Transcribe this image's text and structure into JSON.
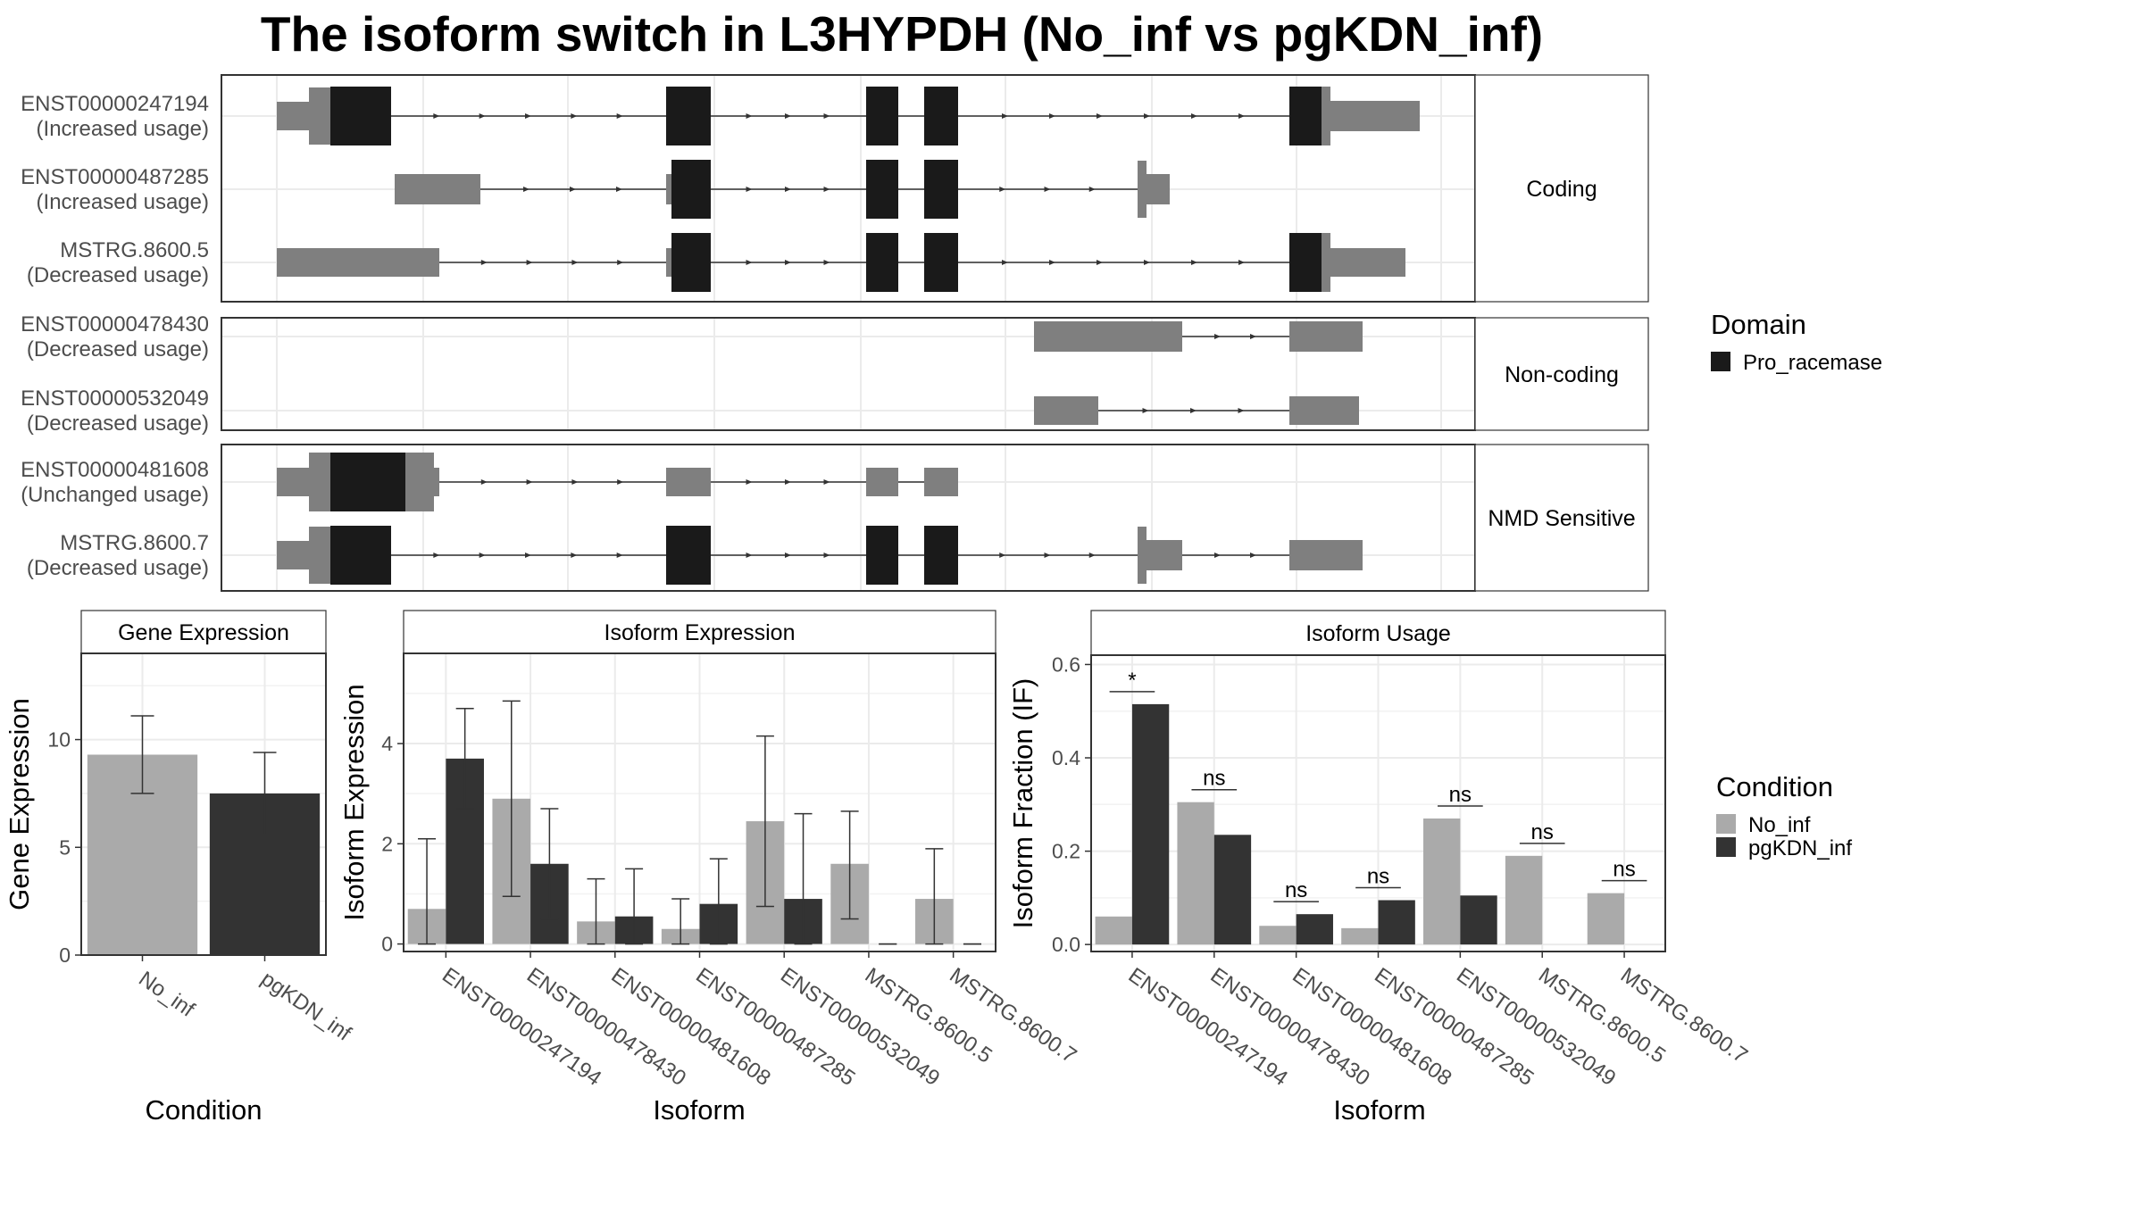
{
  "title": "The isoform switch in L3HYPDH (No_inf vs pgKDN_inf)",
  "transcripts": {
    "categories": [
      {
        "name": "Coding",
        "isoforms": [
          {
            "id": "ENST00000247194",
            "usage": "(Increased usage)"
          },
          {
            "id": "ENST00000487285",
            "usage": "(Increased usage)"
          },
          {
            "id": "MSTRG.8600.5",
            "usage": "(Decreased usage)"
          }
        ]
      },
      {
        "name": "Non-coding",
        "isoforms": [
          {
            "id": "ENST00000478430",
            "usage": "(Decreased usage)"
          },
          {
            "id": "ENST00000532049",
            "usage": "(Decreased usage)"
          }
        ]
      },
      {
        "name": "NMD Sensitive",
        "isoforms": [
          {
            "id": "ENST00000481608",
            "usage": "(Unchanged usage)"
          },
          {
            "id": "MSTRG.8600.7",
            "usage": "(Decreased usage)"
          }
        ]
      }
    ],
    "domain_legend": {
      "title": "Domain",
      "items": [
        "Pro_racemase"
      ]
    },
    "colors": {
      "domain": "#1a1a1a",
      "exon": "#7f7f7f"
    }
  },
  "chart_data": [
    {
      "type": "bar",
      "panel": "Gene Expression",
      "xlabel": "Condition",
      "ylabel": "Gene Expression",
      "categories": [
        "No_inf",
        "pgKDN_inf"
      ],
      "values": [
        9.3,
        7.5
      ],
      "error_low": [
        7.5,
        5.6
      ],
      "error_high": [
        11.1,
        9.4
      ],
      "ylim": [
        0,
        14
      ],
      "yticks": [
        0,
        5,
        10
      ],
      "colors": [
        "#aaaaaa",
        "#333333"
      ]
    },
    {
      "type": "bar",
      "panel": "Isoform Expression",
      "xlabel": "Isoform",
      "ylabel": "Isoform Expression",
      "categories": [
        "ENST00000247194",
        "ENST00000478430",
        "ENST00000481608",
        "ENST00000487285",
        "ENST00000532049",
        "MSTRG.8600.5",
        "MSTRG.8600.7"
      ],
      "series": [
        {
          "name": "No_inf",
          "values": [
            0.7,
            2.9,
            0.45,
            0.3,
            2.45,
            1.6,
            0.9
          ],
          "error_low": [
            0.0,
            0.95,
            0.0,
            0.0,
            0.75,
            0.5,
            0.0
          ],
          "error_high": [
            2.1,
            4.85,
            1.3,
            0.9,
            4.15,
            2.65,
            1.9
          ]
        },
        {
          "name": "pgKDN_inf",
          "values": [
            3.7,
            1.6,
            0.55,
            0.8,
            0.9,
            0.0,
            0.0
          ],
          "error_low": [
            2.7,
            0.5,
            0.0,
            0.0,
            0.0,
            0.0,
            0.0
          ],
          "error_high": [
            4.7,
            2.7,
            1.5,
            1.7,
            2.6,
            0.0,
            0.0
          ]
        }
      ],
      "ylim": [
        -0.15,
        5.8
      ],
      "yticks": [
        0,
        2,
        4
      ],
      "colors": [
        "#aaaaaa",
        "#333333"
      ]
    },
    {
      "type": "bar",
      "panel": "Isoform Usage",
      "xlabel": "Isoform",
      "ylabel": "Isoform Fraction (IF)",
      "categories": [
        "ENST00000247194",
        "ENST00000478430",
        "ENST00000481608",
        "ENST00000487285",
        "ENST00000532049",
        "MSTRG.8600.5",
        "MSTRG.8600.7"
      ],
      "series": [
        {
          "name": "No_inf",
          "values": [
            0.06,
            0.305,
            0.04,
            0.035,
            0.27,
            0.19,
            0.11
          ]
        },
        {
          "name": "pgKDN_inf",
          "values": [
            0.515,
            0.235,
            0.065,
            0.095,
            0.105,
            0.0,
            0.0
          ]
        }
      ],
      "significance": [
        "*",
        "ns",
        "ns",
        "ns",
        "ns",
        "ns",
        "ns"
      ],
      "ylim": [
        -0.015,
        0.62
      ],
      "yticks": [
        0.0,
        0.2,
        0.4,
        0.6
      ],
      "ytick_labels": [
        "0.0",
        "0.2",
        "0.4",
        "0.6"
      ],
      "colors": [
        "#aaaaaa",
        "#333333"
      ]
    }
  ],
  "condition_legend": {
    "title": "Condition",
    "items": [
      "No_inf",
      "pgKDN_inf"
    ]
  }
}
